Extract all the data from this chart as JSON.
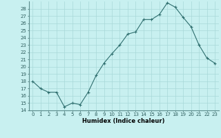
{
  "x": [
    0,
    1,
    2,
    3,
    4,
    5,
    6,
    7,
    8,
    9,
    10,
    11,
    12,
    13,
    14,
    15,
    16,
    17,
    18,
    19,
    20,
    21,
    22,
    23
  ],
  "y": [
    18.0,
    17.0,
    16.5,
    16.5,
    14.5,
    15.0,
    14.8,
    16.5,
    18.8,
    20.5,
    21.8,
    23.0,
    24.5,
    24.8,
    26.5,
    26.5,
    27.2,
    28.8,
    28.2,
    26.8,
    25.5,
    23.0,
    21.2,
    20.5
  ],
  "line_color": "#2e6e6e",
  "marker": "+",
  "marker_size": 3,
  "marker_linewidth": 0.8,
  "linewidth": 0.8,
  "bg_color": "#c8f0f0",
  "grid_color": "#a8d8d8",
  "xlabel": "Humidex (Indice chaleur)",
  "xlabel_fontsize": 6,
  "tick_fontsize": 5,
  "ylim": [
    14,
    29
  ],
  "xlim": [
    -0.5,
    23.5
  ],
  "yticks": [
    14,
    15,
    16,
    17,
    18,
    19,
    20,
    21,
    22,
    23,
    24,
    25,
    26,
    27,
    28
  ],
  "xticks": [
    0,
    1,
    2,
    3,
    4,
    5,
    6,
    7,
    8,
    9,
    10,
    11,
    12,
    13,
    14,
    15,
    16,
    17,
    18,
    19,
    20,
    21,
    22,
    23
  ]
}
